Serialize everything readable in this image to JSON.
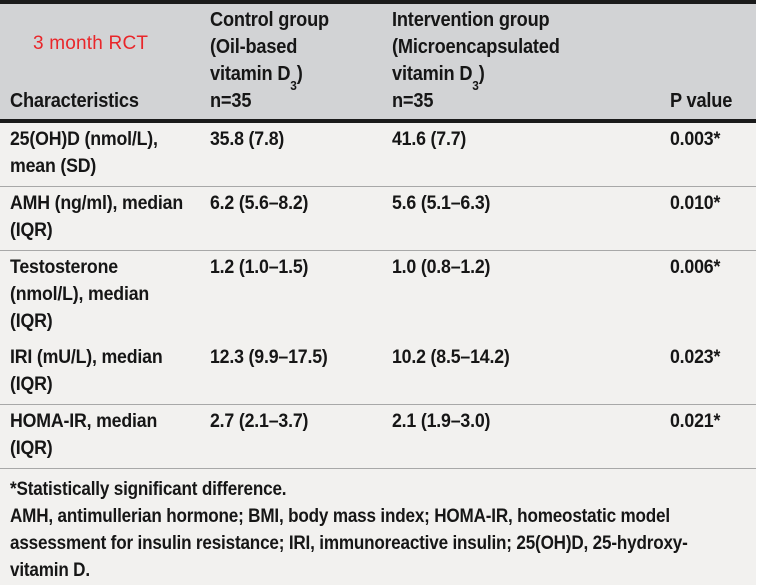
{
  "table": {
    "annotation": "3 month RCT",
    "columns": {
      "characteristics": "Characteristics",
      "p_value": "P value",
      "groups": [
        {
          "title_lines": "Control group\n(Oil-based",
          "vitamin_line": {
            "pre": "vitamin D",
            "sub": "3",
            "post": ")"
          },
          "n": "n=35"
        },
        {
          "title_lines": "Intervention group\n(Microencapsulated",
          "vitamin_line": {
            "pre": "vitamin D",
            "sub": "3",
            "post": ")"
          },
          "n": "n=35"
        }
      ]
    },
    "rows": [
      {
        "characteristic": "25(OH)D (nmol/L),\nmean (SD)",
        "control": "35.8 (7.8)",
        "intervention": "41.6 (7.7)",
        "p_value": "0.003*"
      },
      {
        "characteristic": "AMH (ng/ml), median\n(IQR)",
        "control": "6.2 (5.6–8.2)",
        "intervention": "5.6 (5.1–6.3)",
        "p_value": "0.010*"
      },
      {
        "characteristic": "Testosterone\n(nmol/L), median\n(IQR)",
        "control": "1.2 (1.0–1.5)",
        "intervention": "1.0 (0.8–1.2)",
        "p_value": "0.006*"
      },
      {
        "characteristic": "IRI (mU/L), median\n(IQR)",
        "control": "12.3 (9.9–17.5)",
        "intervention": "10.2 (8.5–14.2)",
        "p_value": "0.023*"
      },
      {
        "characteristic": "HOMA-IR, median\n(IQR)",
        "control": "2.7 (2.1–3.7)",
        "intervention": "2.1 (1.9–3.0)",
        "p_value": "0.021*"
      }
    ],
    "footnotes": {
      "significance": "*Statistically significant difference.",
      "abbreviations": "AMH, antimullerian hormone; BMI, body mass index; HOMA-IR, homeostatic model\nassessment for insulin resistance; IRI, immunoreactive insulin; 25(OH)D, 25-hydroxy-\nvitamin D."
    }
  },
  "colors": {
    "header_bg": "#d2d3d5",
    "body_bg": "#f2f1ef",
    "annotation_red": "#e9262a",
    "rule_dark": "#1b1b1b",
    "rule_light": "#a8a8a8"
  }
}
